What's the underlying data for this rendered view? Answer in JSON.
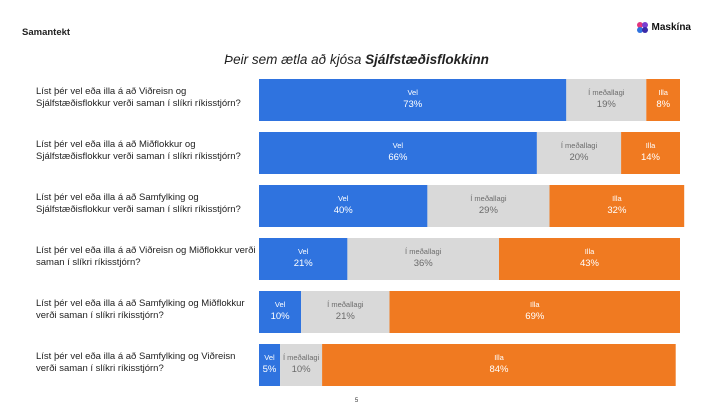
{
  "header": {
    "section": "Samantekt",
    "logo_text": "Maskína"
  },
  "chart_title": {
    "prefix": "Þeir sem ætla að kjósa ",
    "party": "Sjálfstæðisflokkinn"
  },
  "footer": {
    "page_number": "5"
  },
  "colors": {
    "Vel": "#2f73df",
    "Í meðallagi": "#d9d9d9",
    "Illa": "#f07a21"
  },
  "chart_data": {
    "type": "bar",
    "orientation": "horizontal",
    "stacked": true,
    "percent": true,
    "categories": [
      "Líst þér vel eða illa á að Viðreisn og Sjálfstæðisflokkur verði saman í slíkri ríkisstjórn?",
      "Líst þér vel eða illa á að Miðflokkur og Sjálfstæðisflokkur verði saman í slíkri ríkisstjórn?",
      "Líst þér vel eða illa á að Samfylking og Sjálfstæðisflokkur verði saman í slíkri ríkisstjórn?",
      "Líst þér vel eða illa á að Viðreisn og Miðflokkur verði saman í slíkri ríkisstjórn?",
      "Líst þér vel eða illa á að Samfylking og Miðflokkur verði saman í slíkri ríkisstjórn?",
      "Líst þér vel eða illa á að Samfylking og Viðreisn verði saman í slíkri ríkisstjórn?"
    ],
    "series": [
      {
        "name": "Vel",
        "values": [
          73,
          66,
          40,
          21,
          10,
          5
        ]
      },
      {
        "name": "Í meðallagi",
        "values": [
          19,
          20,
          29,
          36,
          21,
          10
        ]
      },
      {
        "name": "Illa",
        "values": [
          8,
          14,
          32,
          43,
          69,
          84
        ]
      }
    ],
    "value_labels": [
      [
        "73%",
        "66%",
        "40%",
        "21%",
        "10%",
        "5%"
      ],
      [
        "19%",
        "20%",
        "29%",
        "36%",
        "21%",
        "10%"
      ],
      [
        "8%",
        "14%",
        "32%",
        "43%",
        "69%",
        "84%"
      ]
    ]
  }
}
